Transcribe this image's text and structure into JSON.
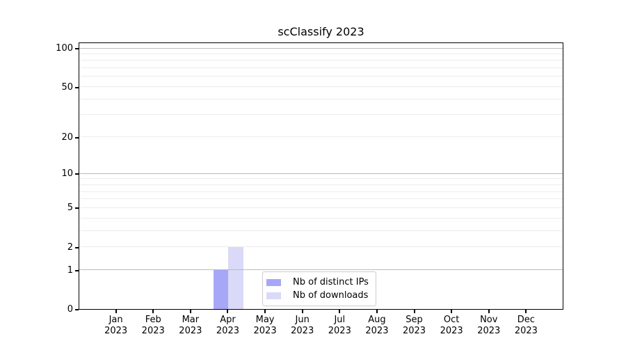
{
  "chart_data": {
    "type": "bar",
    "title": "scClassify 2023",
    "x_categories": [
      {
        "month": "Jan",
        "year": "2023"
      },
      {
        "month": "Feb",
        "year": "2023"
      },
      {
        "month": "Mar",
        "year": "2023"
      },
      {
        "month": "Apr",
        "year": "2023"
      },
      {
        "month": "May",
        "year": "2023"
      },
      {
        "month": "Jun",
        "year": "2023"
      },
      {
        "month": "Jul",
        "year": "2023"
      },
      {
        "month": "Aug",
        "year": "2023"
      },
      {
        "month": "Sep",
        "year": "2023"
      },
      {
        "month": "Oct",
        "year": "2023"
      },
      {
        "month": "Nov",
        "year": "2023"
      },
      {
        "month": "Dec",
        "year": "2023"
      }
    ],
    "series": [
      {
        "name": "Nb of distinct IPs",
        "color": "#a7a7f7",
        "values": [
          0,
          0,
          0,
          1,
          0,
          0,
          0,
          0,
          0,
          0,
          0,
          0
        ]
      },
      {
        "name": "Nb of downloads",
        "color": "#dadaf8",
        "values": [
          0,
          0,
          0,
          2,
          0,
          0,
          0,
          0,
          0,
          0,
          0,
          0
        ]
      }
    ],
    "y_axis": {
      "scale": "log1p",
      "tick_values": [
        0,
        1,
        2,
        5,
        10,
        20,
        50,
        100
      ],
      "max_tick": 100
    },
    "grid": {
      "major_values": [
        1,
        10,
        100
      ],
      "minor_values": [
        2,
        3,
        4,
        5,
        6,
        7,
        8,
        9,
        20,
        30,
        40,
        50,
        60,
        70,
        80,
        90
      ],
      "major_color": "#bbbbbb",
      "minor_color": "#ececec"
    },
    "legend": {
      "position": "inside-bottom-center",
      "entries": [
        "Nb of distinct IPs",
        "Nb of downloads"
      ]
    }
  }
}
